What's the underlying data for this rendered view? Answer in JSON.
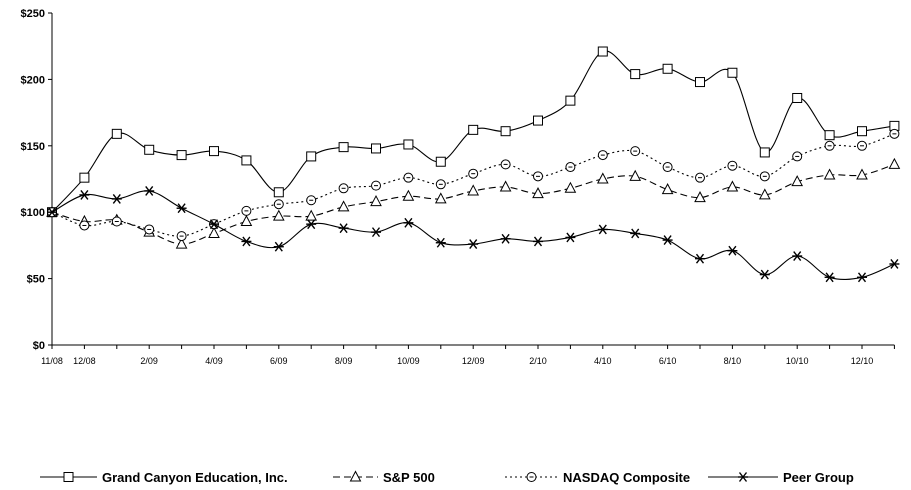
{
  "chart_data": {
    "type": "line",
    "title": "",
    "xlabel": "",
    "ylabel": "",
    "ylim": [
      0,
      250
    ],
    "yticks": [
      0,
      50,
      100,
      150,
      200,
      250
    ],
    "ytick_labels": [
      "$0",
      "$50",
      "$100",
      "$150",
      "$200",
      "$250"
    ],
    "x_tick_labels": [
      "11/08",
      "12/08",
      "2/09",
      "4/09",
      "6/09",
      "8/09",
      "10/09",
      "12/09",
      "2/10",
      "4/10",
      "6/10",
      "8/10",
      "10/10",
      "12/10"
    ],
    "x_tick_index": [
      0,
      1,
      3,
      5,
      7,
      9,
      11,
      13,
      15,
      17,
      19,
      21,
      23,
      25
    ],
    "grid": false,
    "legend_position": "bottom",
    "series": [
      {
        "name": "Grand Canyon Education, Inc.",
        "marker": "square",
        "line": "solid",
        "values": [
          100,
          126,
          159,
          147,
          143,
          146,
          139,
          115,
          142,
          149,
          148,
          151,
          138,
          162,
          161,
          169,
          184,
          221,
          204,
          208,
          198,
          205,
          145,
          186,
          158,
          161,
          165
        ]
      },
      {
        "name": "S&P 500",
        "marker": "triangle",
        "line": "dashed",
        "values": [
          100,
          93,
          94,
          85,
          76,
          84,
          93,
          97,
          97,
          104,
          108,
          112,
          110,
          116,
          119,
          114,
          118,
          125,
          127,
          117,
          111,
          119,
          113,
          123,
          128,
          128,
          136
        ]
      },
      {
        "name": "NASDAQ Composite",
        "marker": "circle",
        "line": "dotted",
        "values": [
          100,
          90,
          93,
          87,
          82,
          91,
          101,
          106,
          109,
          118,
          120,
          126,
          121,
          129,
          136,
          127,
          134,
          143,
          146,
          134,
          126,
          135,
          127,
          142,
          150,
          150,
          159
        ]
      },
      {
        "name": "Peer Group",
        "marker": "asterisk",
        "line": "solid",
        "values": [
          100,
          113,
          110,
          116,
          103,
          91,
          78,
          74,
          91,
          88,
          85,
          92,
          77,
          76,
          80,
          78,
          81,
          87,
          84,
          79,
          65,
          71,
          53,
          67,
          51,
          51,
          61
        ]
      }
    ]
  }
}
